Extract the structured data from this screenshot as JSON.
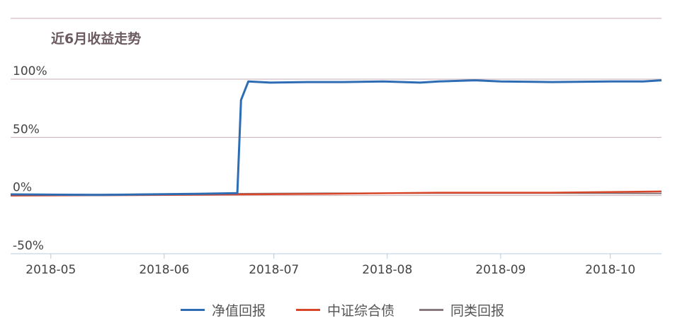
{
  "chart_data": {
    "type": "line",
    "title": "近6月收益走势",
    "x_ticks": [
      "2018-05",
      "2018-06",
      "2018-07",
      "2018-08",
      "2018-09",
      "2018-10"
    ],
    "y_ticks": [
      "100%",
      "50%",
      "0%",
      "-50%"
    ],
    "ylim": [
      -50,
      100
    ],
    "grid": true,
    "legend_position": "bottom",
    "colors": {
      "net_value": "#2e6db4",
      "index": "#d9472b",
      "peer": "#8a7a80"
    },
    "series": [
      {
        "name": "净值回报",
        "points": [
          [
            "2018-04-20",
            1
          ],
          [
            "2018-05-15",
            0.5
          ],
          [
            "2018-06-10",
            1.5
          ],
          [
            "2018-06-20",
            2
          ],
          [
            "2018-06-21",
            2
          ],
          [
            "2018-06-22",
            82
          ],
          [
            "2018-06-24",
            98
          ],
          [
            "2018-06-30",
            97
          ],
          [
            "2018-07-10",
            97.5
          ],
          [
            "2018-07-20",
            97.5
          ],
          [
            "2018-07-31",
            98
          ],
          [
            "2018-08-10",
            97
          ],
          [
            "2018-08-15",
            98
          ],
          [
            "2018-08-25",
            99
          ],
          [
            "2018-09-01",
            98
          ],
          [
            "2018-09-15",
            97.5
          ],
          [
            "2018-10-01",
            98
          ],
          [
            "2018-10-10",
            98
          ],
          [
            "2018-10-15",
            99
          ]
        ]
      },
      {
        "name": "中证综合债",
        "points": [
          [
            "2018-04-20",
            0
          ],
          [
            "2018-05-15",
            0.3
          ],
          [
            "2018-06-15",
            0.8
          ],
          [
            "2018-07-15",
            1.5
          ],
          [
            "2018-08-15",
            2.5
          ],
          [
            "2018-09-15",
            2.5
          ],
          [
            "2018-10-15",
            3.5
          ]
        ]
      },
      {
        "name": "同类回报",
        "points": [
          [
            "2018-04-20",
            1
          ],
          [
            "2018-05-15",
            0.8
          ],
          [
            "2018-06-15",
            1.5
          ],
          [
            "2018-07-15",
            2
          ],
          [
            "2018-08-15",
            2
          ],
          [
            "2018-09-15",
            2
          ],
          [
            "2018-10-15",
            1.8
          ]
        ]
      }
    ]
  }
}
